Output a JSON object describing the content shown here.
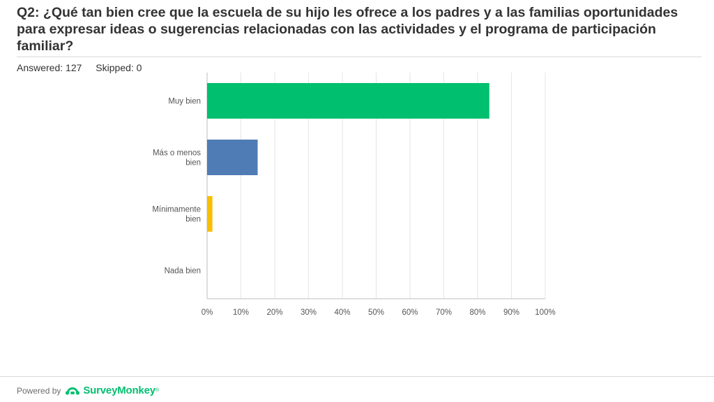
{
  "header": {
    "title": "Q2: ¿Qué tan bien cree que la escuela de su hijo les ofrece a los padres y a las familias oportunidades para expresar ideas o sugerencias relacionadas con las actividades y el programa de participación familiar?",
    "answered": "Answered: 127",
    "skipped": "Skipped: 0"
  },
  "footer": {
    "powered_by": "Powered by",
    "brand": "SurveyMonkey",
    "brand_mark": "®",
    "brand_color": "#00bf6f"
  },
  "chart_data": {
    "type": "bar",
    "orientation": "horizontal",
    "categories": [
      [
        "Muy bien"
      ],
      [
        "Más o menos",
        "bien"
      ],
      [
        "Mínimamente",
        "bien"
      ],
      [
        "Nada bien"
      ]
    ],
    "values": [
      83.46,
      14.96,
      1.57,
      0
    ],
    "colors": [
      "#00bf6f",
      "#507cb6",
      "#f9be00",
      "#6bc8cd"
    ],
    "xlim": [
      0,
      100
    ],
    "xticks": [
      "0%",
      "10%",
      "20%",
      "30%",
      "40%",
      "50%",
      "60%",
      "70%",
      "80%",
      "90%",
      "100%"
    ],
    "grid": true
  }
}
